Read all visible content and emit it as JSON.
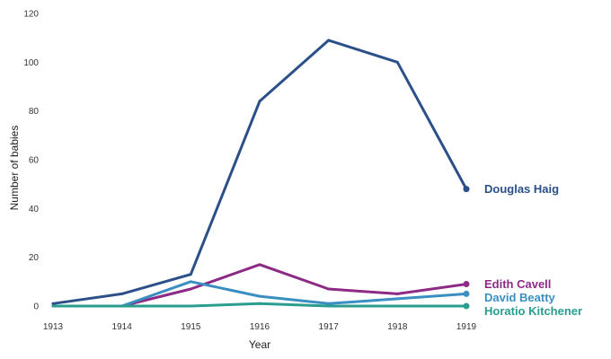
{
  "chart_data": {
    "type": "line",
    "title": "",
    "xlabel": "Year",
    "ylabel": "Number of babies",
    "x": [
      1913,
      1914,
      1915,
      1916,
      1917,
      1918,
      1919
    ],
    "x_tick_labels": [
      "1913",
      "1914",
      "1915",
      "1916",
      "1917",
      "1918",
      "1919"
    ],
    "ylim": [
      0,
      120
    ],
    "y_ticks": [
      0,
      20,
      40,
      60,
      80,
      100,
      120
    ],
    "y_tick_labels": [
      "0",
      "20",
      "40",
      "60",
      "80",
      "100",
      "120"
    ],
    "grid": false,
    "legend": "direct labels at right end of lines",
    "series": [
      {
        "name": "Douglas Haig",
        "color": "#2b5089",
        "values": [
          1,
          5,
          13,
          84,
          109,
          100,
          48
        ]
      },
      {
        "name": "Edith Cavell",
        "color": "#8c2a85",
        "values": [
          0,
          0,
          7,
          17,
          7,
          5,
          9
        ]
      },
      {
        "name": "David Beatty",
        "color": "#3a8fc2",
        "values": [
          0,
          0,
          10,
          4,
          1,
          3,
          5
        ]
      },
      {
        "name": "Horatio Kitchener",
        "color": "#2a9d8f",
        "values": [
          0,
          0,
          0,
          1,
          0,
          0,
          0
        ]
      }
    ]
  }
}
